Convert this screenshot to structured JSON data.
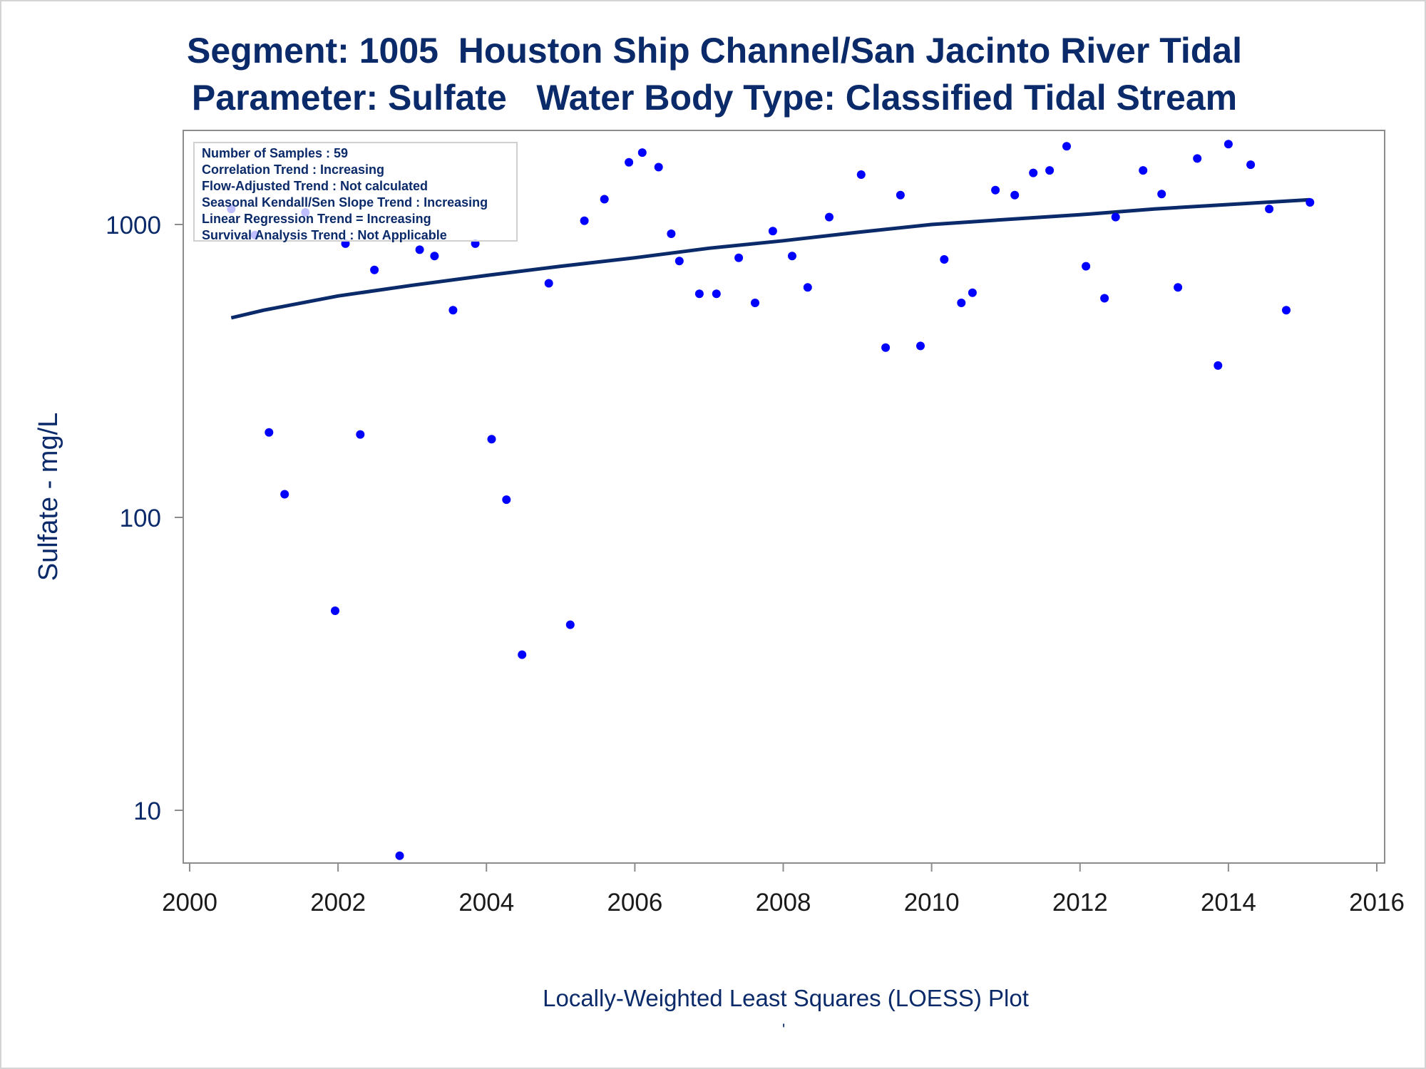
{
  "titles": {
    "line1": "Segment: 1005  Houston Ship Channel/San Jacinto River Tidal",
    "line2": "Parameter: Sulfate   Water Body Type: Classified Tidal Stream"
  },
  "stats_box": {
    "items": [
      "Number of Samples : 59",
      "Correlation Trend : Increasing",
      "Flow-Adjusted Trend : Not calculated",
      "Seasonal Kendall/Sen Slope Trend : Increasing",
      "Linear Regression Trend = Increasing",
      "Survival Analysis Trend : Not Applicable"
    ]
  },
  "caption": "Locally-Weighted Least Squares (LOESS) Plot",
  "footnote_mark": "'",
  "colors": {
    "text": "#0b2a6a",
    "points": "#0000ff",
    "line": "#0b2a6a",
    "axis": "#8c8c8c"
  },
  "chart_data": {
    "type": "scatter",
    "ylabel": "Sulfate - mg/L",
    "xlabel": "",
    "xlim": [
      2000,
      2016
    ],
    "ylim": [
      7,
      2200
    ],
    "yscale": "log",
    "x_ticks": [
      2000,
      2002,
      2004,
      2006,
      2008,
      2010,
      2012,
      2014,
      2016
    ],
    "y_ticks": [
      10,
      100,
      1000
    ],
    "grid": false,
    "series": [
      {
        "points": [
          [
            2000.56,
            1130
          ],
          [
            2000.88,
            920
          ],
          [
            2001.07,
            195
          ],
          [
            2001.28,
            120
          ],
          [
            2001.56,
            1100
          ],
          [
            2001.96,
            48
          ],
          [
            2002.1,
            860
          ],
          [
            2002.3,
            192
          ],
          [
            2002.49,
            700
          ],
          [
            2002.83,
            7
          ],
          [
            2003.1,
            820
          ],
          [
            2003.3,
            780
          ],
          [
            2003.55,
            510
          ],
          [
            2003.85,
            860
          ],
          [
            2004.07,
            185
          ],
          [
            2004.27,
            115
          ],
          [
            2004.48,
            34
          ],
          [
            2004.84,
            630
          ],
          [
            2005.13,
            43
          ],
          [
            2005.32,
            1030
          ],
          [
            2005.59,
            1220
          ],
          [
            2005.92,
            1630
          ],
          [
            2006.1,
            1760
          ],
          [
            2006.32,
            1570
          ],
          [
            2006.49,
            930
          ],
          [
            2006.6,
            750
          ],
          [
            2006.87,
            580
          ],
          [
            2007.1,
            580
          ],
          [
            2007.4,
            770
          ],
          [
            2007.62,
            540
          ],
          [
            2007.86,
            950
          ],
          [
            2008.12,
            780
          ],
          [
            2008.33,
            610
          ],
          [
            2008.62,
            1060
          ],
          [
            2009.05,
            1480
          ],
          [
            2009.38,
            380
          ],
          [
            2009.58,
            1260
          ],
          [
            2009.85,
            385
          ],
          [
            2010.17,
            760
          ],
          [
            2010.4,
            540
          ],
          [
            2010.55,
            585
          ],
          [
            2010.86,
            1310
          ],
          [
            2011.12,
            1260
          ],
          [
            2011.37,
            1500
          ],
          [
            2011.59,
            1530
          ],
          [
            2011.82,
            1850
          ],
          [
            2012.08,
            720
          ],
          [
            2012.33,
            560
          ],
          [
            2012.48,
            1060
          ],
          [
            2012.85,
            1530
          ],
          [
            2013.1,
            1270
          ],
          [
            2013.32,
            610
          ],
          [
            2013.58,
            1680
          ],
          [
            2013.86,
            330
          ],
          [
            2014.0,
            1880
          ],
          [
            2014.3,
            1600
          ],
          [
            2014.55,
            1130
          ],
          [
            2014.78,
            510
          ],
          [
            2015.1,
            1190
          ]
        ]
      },
      {
        "type": "line",
        "points": [
          [
            2000.56,
            480
          ],
          [
            2001.0,
            510
          ],
          [
            2002.0,
            570
          ],
          [
            2003.0,
            620
          ],
          [
            2004.0,
            670
          ],
          [
            2005.0,
            720
          ],
          [
            2006.0,
            770
          ],
          [
            2007.0,
            830
          ],
          [
            2008.0,
            880
          ],
          [
            2009.0,
            940
          ],
          [
            2010.0,
            1000
          ],
          [
            2011.0,
            1040
          ],
          [
            2012.0,
            1080
          ],
          [
            2013.0,
            1130
          ],
          [
            2014.0,
            1170
          ],
          [
            2015.1,
            1215
          ]
        ]
      }
    ]
  }
}
